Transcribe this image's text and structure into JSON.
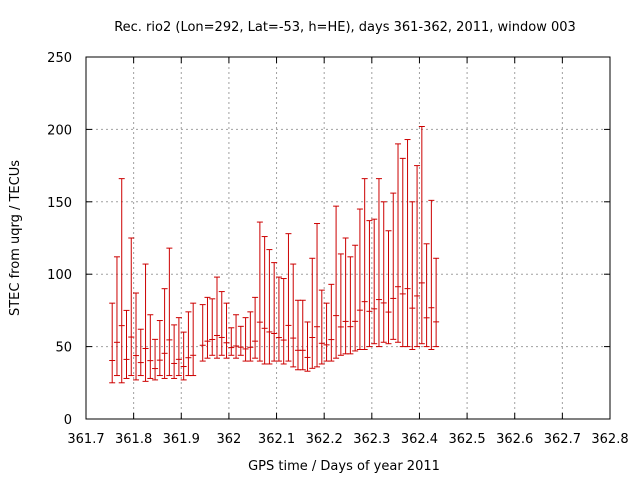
{
  "chart_data": {
    "type": "scatter",
    "title": "Rec. rio2 (Lon=292, Lat=-53, h=HE), days 361-362, 2011, window 003",
    "xlabel": "GPS time / Days of year 2011",
    "ylabel": "STEC from uqrg / TECUs",
    "xlim": [
      361.7,
      362.8
    ],
    "ylim": [
      0,
      250
    ],
    "grid": true,
    "series_color": "#cc0000",
    "x_ticks": [
      "361.7",
      "361.8",
      "361.9",
      "362",
      "362.1",
      "362.2",
      "362.3",
      "362.4",
      "362.5",
      "362.6",
      "362.7",
      "362.8"
    ],
    "y_ticks": [
      "0",
      "50",
      "100",
      "150",
      "200",
      "250"
    ],
    "series": [
      {
        "error_bars": [
          [
            361.755,
            25,
            80
          ],
          [
            361.765,
            30,
            112
          ],
          [
            361.775,
            25,
            166
          ],
          [
            361.785,
            28,
            75
          ],
          [
            361.795,
            30,
            125
          ],
          [
            361.805,
            27,
            87
          ],
          [
            361.815,
            30,
            62
          ],
          [
            361.825,
            26,
            107
          ],
          [
            361.835,
            28,
            72
          ],
          [
            361.845,
            27,
            55
          ],
          [
            361.855,
            30,
            68
          ],
          [
            361.865,
            28,
            90
          ],
          [
            361.875,
            30,
            118
          ],
          [
            361.885,
            28,
            65
          ],
          [
            361.895,
            30,
            70
          ],
          [
            361.905,
            27,
            60
          ],
          [
            361.915,
            30,
            74
          ],
          [
            361.925,
            30,
            80
          ],
          [
            361.945,
            40,
            79
          ],
          [
            361.955,
            42,
            84
          ],
          [
            361.965,
            44,
            83
          ],
          [
            361.975,
            42,
            98
          ],
          [
            361.985,
            44,
            88
          ],
          [
            361.995,
            42,
            80
          ],
          [
            362.005,
            44,
            63
          ],
          [
            362.015,
            42,
            72
          ],
          [
            362.025,
            44,
            64
          ],
          [
            362.035,
            40,
            70
          ],
          [
            362.045,
            40,
            74
          ],
          [
            362.055,
            42,
            84
          ],
          [
            362.065,
            40,
            136
          ],
          [
            362.075,
            38,
            126
          ],
          [
            362.085,
            38,
            117
          ],
          [
            362.095,
            40,
            108
          ],
          [
            362.105,
            40,
            98
          ],
          [
            362.115,
            38,
            97
          ],
          [
            362.125,
            40,
            128
          ],
          [
            362.135,
            36,
            107
          ],
          [
            362.145,
            34,
            82
          ],
          [
            362.155,
            34,
            82
          ],
          [
            362.165,
            33,
            67
          ],
          [
            362.175,
            35,
            111
          ],
          [
            362.185,
            36,
            135
          ],
          [
            362.195,
            38,
            89
          ],
          [
            362.205,
            40,
            80
          ],
          [
            362.215,
            40,
            93
          ],
          [
            362.225,
            42,
            147
          ],
          [
            362.235,
            44,
            114
          ],
          [
            362.245,
            45,
            125
          ],
          [
            362.255,
            45,
            112
          ],
          [
            362.265,
            47,
            120
          ],
          [
            362.275,
            48,
            145
          ],
          [
            362.285,
            48,
            166
          ],
          [
            362.295,
            50,
            137
          ],
          [
            362.305,
            52,
            138
          ],
          [
            362.315,
            50,
            166
          ],
          [
            362.325,
            53,
            150
          ],
          [
            362.335,
            52,
            130
          ],
          [
            362.345,
            55,
            156
          ],
          [
            362.355,
            53,
            190
          ],
          [
            362.365,
            50,
            180
          ],
          [
            362.375,
            50,
            193
          ],
          [
            362.385,
            48,
            150
          ],
          [
            362.395,
            50,
            175
          ],
          [
            362.405,
            52,
            202
          ],
          [
            362.415,
            50,
            121
          ],
          [
            362.425,
            48,
            151
          ],
          [
            362.435,
            50,
            111
          ]
        ]
      }
    ]
  }
}
